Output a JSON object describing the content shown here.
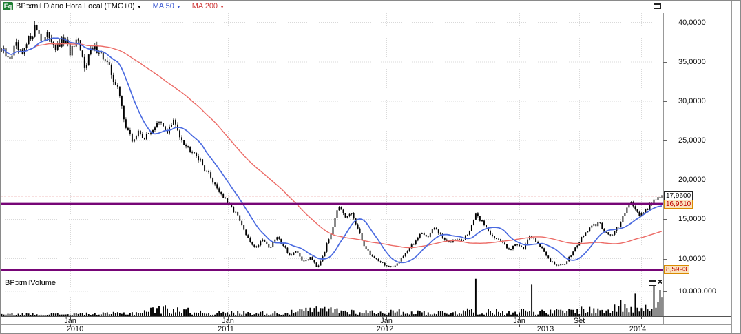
{
  "header": {
    "badge": "Eq",
    "symbol_title": "BP:xmil Diário Hora Local (TMG+0)",
    "ma50_label": "MA 50",
    "ma200_label": "MA 200",
    "caret": "▼"
  },
  "volume_panel": {
    "title": "BP:xmilVolume",
    "close_label": "×"
  },
  "colors": {
    "candle": "#000000",
    "ma50": "#4a6ae0",
    "ma200": "#ec6b66",
    "level_line": "#760576",
    "last_price_line": "#c40000",
    "grid": "#d9d9d9",
    "alert_badge_bg": "#fbe3bd",
    "alert_badge_border": "#d98a00",
    "alert_badge_text": "#c00000",
    "eq_badge_bg": "#1e7e34"
  },
  "chart_data": {
    "type": "candlestick",
    "title": "BP:xmil Diário Hora Local (TMG+0)",
    "legend": [
      "MA 50",
      "MA 200"
    ],
    "samples": 320,
    "y_axis": {
      "range": [
        7.6,
        41.2
      ],
      "ticks": [
        {
          "value": 40,
          "label": "40,0000"
        },
        {
          "value": 35,
          "label": "35,0000"
        },
        {
          "value": 30,
          "label": "30,0000"
        },
        {
          "value": 25,
          "label": "25,0000"
        },
        {
          "value": 20,
          "label": "20,0000"
        },
        {
          "value": 15,
          "label": "15,0000"
        },
        {
          "value": 10,
          "label": "10,0000"
        }
      ]
    },
    "x_axis": {
      "month_ticks": [
        {
          "label": "Jan",
          "t": 0.105
        },
        {
          "label": "Jan",
          "t": 0.343
        },
        {
          "label": "Jan",
          "t": 0.582
        },
        {
          "label": "Jan",
          "t": 0.783
        },
        {
          "label": "Set",
          "t": 0.873
        },
        {
          "label": "",
          "t": 0.967
        }
      ],
      "year_labels": [
        {
          "label": "2010",
          "t": 0.112
        },
        {
          "label": "2011",
          "t": 0.34
        },
        {
          "label": "2012",
          "t": 0.58
        },
        {
          "label": "2013",
          "t": 0.822
        },
        {
          "label": "2014",
          "t": 0.962
        }
      ]
    },
    "levels": [
      {
        "value": 17.96,
        "label": "17,9600",
        "style": "last"
      },
      {
        "value": 16.951,
        "label": "16,9510",
        "style": "alert"
      },
      {
        "value": 8.5993,
        "label": "8,5993",
        "style": "alert"
      }
    ],
    "ma": {
      "ma50_window": 15,
      "ma200_window": 61
    },
    "price_anchors": [
      [
        0,
        36.5
      ],
      [
        0.01,
        35.2
      ],
      [
        0.021,
        37
      ],
      [
        0.031,
        35.6
      ],
      [
        0.042,
        38
      ],
      [
        0.052,
        39.6
      ],
      [
        0.062,
        37.6
      ],
      [
        0.073,
        38.4
      ],
      [
        0.083,
        36.6
      ],
      [
        0.094,
        37.8
      ],
      [
        0.104,
        36.2
      ],
      [
        0.115,
        37.4
      ],
      [
        0.125,
        34.6
      ],
      [
        0.135,
        36.4
      ],
      [
        0.146,
        36.8
      ],
      [
        0.156,
        35.2
      ],
      [
        0.166,
        33.6
      ],
      [
        0.177,
        31.2
      ],
      [
        0.187,
        27.2
      ],
      [
        0.197,
        24.9
      ],
      [
        0.208,
        26.1
      ],
      [
        0.218,
        25.3
      ],
      [
        0.229,
        26.6
      ],
      [
        0.239,
        27.2
      ],
      [
        0.25,
        26.1
      ],
      [
        0.26,
        27.4
      ],
      [
        0.271,
        25.6
      ],
      [
        0.281,
        24.1
      ],
      [
        0.291,
        23.8
      ],
      [
        0.302,
        22.1
      ],
      [
        0.312,
        20.9
      ],
      [
        0.322,
        19.6
      ],
      [
        0.333,
        18.1
      ],
      [
        0.343,
        16.9
      ],
      [
        0.354,
        15.9
      ],
      [
        0.364,
        14.1
      ],
      [
        0.374,
        12.3
      ],
      [
        0.385,
        11.4
      ],
      [
        0.395,
        12.6
      ],
      [
        0.406,
        11.3
      ],
      [
        0.416,
        12.8
      ],
      [
        0.426,
        11.8
      ],
      [
        0.437,
        10.3
      ],
      [
        0.447,
        10.9
      ],
      [
        0.457,
        9.5
      ],
      [
        0.468,
        10.3
      ],
      [
        0.478,
        8.9
      ],
      [
        0.489,
        11
      ],
      [
        0.499,
        13.4
      ],
      [
        0.509,
        16.7
      ],
      [
        0.52,
        15.1
      ],
      [
        0.53,
        15.8
      ],
      [
        0.541,
        13.3
      ],
      [
        0.551,
        11.3
      ],
      [
        0.561,
        10.3
      ],
      [
        0.572,
        9.7
      ],
      [
        0.582,
        9.1
      ],
      [
        0.593,
        8.8
      ],
      [
        0.603,
        9.9
      ],
      [
        0.613,
        10.9
      ],
      [
        0.624,
        11.9
      ],
      [
        0.634,
        13.4
      ],
      [
        0.644,
        12.7
      ],
      [
        0.655,
        13.9
      ],
      [
        0.665,
        12.9
      ],
      [
        0.676,
        12
      ],
      [
        0.686,
        12.7
      ],
      [
        0.697,
        12.2
      ],
      [
        0.707,
        13.3
      ],
      [
        0.717,
        15.5
      ],
      [
        0.728,
        14.7
      ],
      [
        0.738,
        13.4
      ],
      [
        0.749,
        12.5
      ],
      [
        0.759,
        12
      ],
      [
        0.769,
        11.2
      ],
      [
        0.78,
        11.9
      ],
      [
        0.79,
        11.4
      ],
      [
        0.801,
        12.9
      ],
      [
        0.811,
        12.1
      ],
      [
        0.822,
        10.7
      ],
      [
        0.832,
        9.6
      ],
      [
        0.842,
        9
      ],
      [
        0.853,
        9.4
      ],
      [
        0.863,
        10.7
      ],
      [
        0.873,
        12
      ],
      [
        0.884,
        13.3
      ],
      [
        0.894,
        14.1
      ],
      [
        0.905,
        14.5
      ],
      [
        0.915,
        13.2
      ],
      [
        0.925,
        13
      ],
      [
        0.936,
        14.4
      ],
      [
        0.946,
        16.2
      ],
      [
        0.953,
        17.5
      ],
      [
        0.96,
        16.2
      ],
      [
        0.967,
        15.5
      ],
      [
        0.975,
        16.1
      ],
      [
        0.982,
        16.9
      ],
      [
        0.99,
        17.7
      ],
      [
        1,
        17.96
      ]
    ],
    "volume": {
      "ylim": [
        0,
        15.2
      ],
      "unit": "millions",
      "gridline": {
        "value": 10,
        "label": "10.000.000"
      },
      "envelope": [
        [
          0,
          0.7
        ],
        [
          0.08,
          0.8
        ],
        [
          0.15,
          0.9
        ],
        [
          0.2,
          1.3
        ],
        [
          0.23,
          2.6
        ],
        [
          0.26,
          2.9
        ],
        [
          0.29,
          1.8
        ],
        [
          0.33,
          1.2
        ],
        [
          0.38,
          1.4
        ],
        [
          0.43,
          1.3
        ],
        [
          0.47,
          2.4
        ],
        [
          0.5,
          2.6
        ],
        [
          0.53,
          1.8
        ],
        [
          0.57,
          1.6
        ],
        [
          0.6,
          1.7
        ],
        [
          0.64,
          1.5
        ],
        [
          0.68,
          1.5
        ],
        [
          0.71,
          2.2
        ],
        [
          0.73,
          1.8
        ],
        [
          0.76,
          1.7
        ],
        [
          0.79,
          2.1
        ],
        [
          0.82,
          1.6
        ],
        [
          0.85,
          1.9
        ],
        [
          0.88,
          2.6
        ],
        [
          0.91,
          2.2
        ],
        [
          0.94,
          3.2
        ],
        [
          0.96,
          3.6
        ],
        [
          0.98,
          5.5
        ],
        [
          1,
          7.5
        ]
      ],
      "spikes": [
        [
          0.718,
          15
        ],
        [
          0.801,
          12.6
        ],
        [
          0.936,
          6.5
        ],
        [
          0.958,
          9
        ],
        [
          0.986,
          14.2
        ],
        [
          0.996,
          10.5
        ]
      ]
    }
  }
}
